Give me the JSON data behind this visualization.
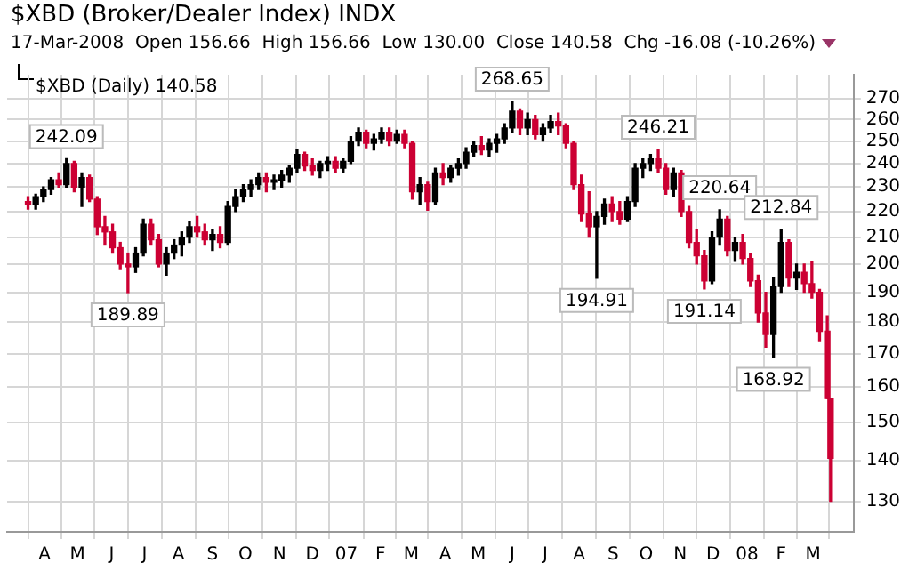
{
  "chart_data": {
    "type": "candlestick",
    "title": "$XBD (Broker/Dealer Index) INDX",
    "subtitle": "17-Mar-2008  Open 156.66  High 156.66  Low 130.00  Close 140.58  Chg -16.08 (-10.26%)",
    "x": [
      "2006-03-17",
      "2006-03-24",
      "2006-03-31",
      "2006-04-07",
      "2006-04-14",
      "2006-04-21",
      "2006-04-28",
      "2006-05-05",
      "2006-05-12",
      "2006-05-19",
      "2006-05-26",
      "2006-06-02",
      "2006-06-09",
      "2006-06-16",
      "2006-06-23",
      "2006-06-30",
      "2006-07-07",
      "2006-07-14",
      "2006-07-21",
      "2006-07-28",
      "2006-08-04",
      "2006-08-11",
      "2006-08-18",
      "2006-08-25",
      "2006-09-01",
      "2006-09-08",
      "2006-09-15",
      "2006-09-22",
      "2006-09-29",
      "2006-10-06",
      "2006-10-13",
      "2006-10-20",
      "2006-10-27",
      "2006-11-03",
      "2006-11-10",
      "2006-11-17",
      "2006-11-24",
      "2006-12-01",
      "2006-12-08",
      "2006-12-15",
      "2006-12-22",
      "2006-12-29",
      "2007-01-05",
      "2007-01-12",
      "2007-01-19",
      "2007-01-26",
      "2007-02-02",
      "2007-02-09",
      "2007-02-16",
      "2007-02-23",
      "2007-03-02",
      "2007-03-09",
      "2007-03-16",
      "2007-03-23",
      "2007-03-30",
      "2007-04-06",
      "2007-04-13",
      "2007-04-20",
      "2007-04-27",
      "2007-05-04",
      "2007-05-11",
      "2007-05-18",
      "2007-05-25",
      "2007-06-01",
      "2007-06-08",
      "2007-06-15",
      "2007-06-22",
      "2007-06-29",
      "2007-07-06",
      "2007-07-13",
      "2007-07-20",
      "2007-07-27",
      "2007-08-03",
      "2007-08-10",
      "2007-08-17",
      "2007-08-24",
      "2007-08-31",
      "2007-09-07",
      "2007-09-14",
      "2007-09-21",
      "2007-09-28",
      "2007-10-05",
      "2007-10-12",
      "2007-10-19",
      "2007-10-26",
      "2007-11-02",
      "2007-11-09",
      "2007-11-16",
      "2007-11-23",
      "2007-11-30",
      "2007-12-07",
      "2007-12-14",
      "2007-12-21",
      "2007-12-28",
      "2008-01-04",
      "2008-01-11",
      "2008-01-18",
      "2008-01-25",
      "2008-02-01",
      "2008-02-08",
      "2008-02-15",
      "2008-02-22",
      "2008-02-29",
      "2008-03-07",
      "2008-03-14",
      "2008-03-17"
    ],
    "ohlc": [
      [
        224,
        226,
        221,
        223
      ],
      [
        223,
        227,
        221,
        226
      ],
      [
        226,
        230,
        224,
        229
      ],
      [
        229,
        234,
        227,
        233
      ],
      [
        233,
        236,
        230,
        231
      ],
      [
        231,
        242.09,
        230,
        240
      ],
      [
        240,
        241,
        228,
        230
      ],
      [
        230,
        236,
        222,
        234
      ],
      [
        234,
        235,
        224,
        225
      ],
      [
        225,
        226,
        211,
        214
      ],
      [
        214,
        218,
        207,
        212
      ],
      [
        212,
        215,
        204,
        206
      ],
      [
        206,
        208,
        198,
        200
      ],
      [
        200,
        204,
        189.89,
        199
      ],
      [
        199,
        206,
        197,
        204
      ],
      [
        204,
        217,
        203,
        215
      ],
      [
        215,
        217,
        207,
        209
      ],
      [
        209,
        211,
        199,
        200
      ],
      [
        200,
        206,
        196,
        204
      ],
      [
        204,
        209,
        202,
        207
      ],
      [
        207,
        212,
        203,
        210
      ],
      [
        210,
        216,
        208,
        214
      ],
      [
        214,
        218,
        210,
        212
      ],
      [
        212,
        215,
        207,
        209
      ],
      [
        209,
        213,
        205,
        211
      ],
      [
        211,
        214,
        206,
        208
      ],
      [
        208,
        224,
        207,
        222
      ],
      [
        222,
        229,
        220,
        226
      ],
      [
        226,
        231,
        224,
        229
      ],
      [
        229,
        233,
        226,
        231
      ],
      [
        231,
        236,
        229,
        234
      ],
      [
        234,
        236,
        228,
        232
      ],
      [
        232,
        235,
        229,
        233
      ],
      [
        233,
        237,
        230,
        235
      ],
      [
        235,
        239,
        232,
        238
      ],
      [
        238,
        246,
        236,
        244
      ],
      [
        244,
        245,
        237,
        239
      ],
      [
        239,
        242,
        235,
        237
      ],
      [
        237,
        241,
        234,
        240
      ],
      [
        240,
        243,
        237,
        241
      ],
      [
        241,
        243,
        236,
        238
      ],
      [
        238,
        242,
        236,
        241
      ],
      [
        241,
        252,
        240,
        250
      ],
      [
        250,
        256,
        248,
        254
      ],
      [
        254,
        255,
        247,
        249
      ],
      [
        249,
        253,
        246,
        251
      ],
      [
        251,
        256,
        249,
        254
      ],
      [
        254,
        256,
        248,
        250
      ],
      [
        250,
        255,
        249,
        253
      ],
      [
        253,
        255,
        247,
        249
      ],
      [
        249,
        250,
        225,
        228
      ],
      [
        228,
        234,
        223,
        231
      ],
      [
        231,
        232,
        220.5,
        224
      ],
      [
        224,
        238,
        223,
        236
      ],
      [
        236,
        240,
        231,
        234
      ],
      [
        234,
        239,
        232,
        238
      ],
      [
        238,
        242,
        235,
        240
      ],
      [
        240,
        247,
        238,
        245
      ],
      [
        245,
        250,
        243,
        248
      ],
      [
        248,
        252,
        244,
        246
      ],
      [
        246,
        251,
        243,
        249
      ],
      [
        249,
        253,
        245,
        251
      ],
      [
        251,
        258,
        249,
        256
      ],
      [
        256,
        268.65,
        254,
        264
      ],
      [
        264,
        265,
        253,
        256
      ],
      [
        256,
        263,
        253,
        260
      ],
      [
        260,
        262,
        251,
        253
      ],
      [
        253,
        258,
        250,
        256
      ],
      [
        256,
        262,
        254,
        259
      ],
      [
        259,
        263,
        253,
        257
      ],
      [
        257,
        258,
        247,
        249
      ],
      [
        249,
        250,
        229,
        231
      ],
      [
        231,
        235,
        216,
        219
      ],
      [
        219,
        228,
        210,
        214
      ],
      [
        214,
        220,
        194.91,
        218
      ],
      [
        218,
        225,
        215,
        223
      ],
      [
        223,
        226,
        216,
        220
      ],
      [
        220,
        224,
        215,
        217
      ],
      [
        217,
        226,
        216,
        224
      ],
      [
        224,
        240,
        222,
        238
      ],
      [
        238,
        242,
        234,
        240
      ],
      [
        240,
        244,
        237,
        242
      ],
      [
        242,
        246.21,
        236,
        238
      ],
      [
        238,
        240,
        227,
        229
      ],
      [
        229,
        238,
        226,
        236
      ],
      [
        236,
        237,
        218,
        220
      ],
      [
        220,
        222,
        206,
        208
      ],
      [
        208,
        213,
        200,
        203
      ],
      [
        203,
        205,
        191.14,
        194
      ],
      [
        194,
        212,
        193,
        210
      ],
      [
        210,
        220.64,
        207,
        217
      ],
      [
        217,
        218,
        203,
        205
      ],
      [
        205,
        210,
        201,
        208
      ],
      [
        208,
        211,
        200,
        202
      ],
      [
        202,
        204,
        192,
        194
      ],
      [
        194,
        196,
        180,
        183
      ],
      [
        183,
        190,
        172,
        176
      ],
      [
        176,
        195,
        168.92,
        192
      ],
      [
        192,
        212.84,
        190,
        208
      ],
      [
        208,
        209,
        192,
        195
      ],
      [
        195,
        200,
        191,
        197
      ],
      [
        197,
        200,
        190,
        193
      ],
      [
        193,
        201,
        188,
        190
      ],
      [
        190,
        191,
        174,
        177
      ],
      [
        177,
        182,
        156.66,
        156.66
      ],
      [
        156.66,
        156.66,
        130,
        140.58
      ]
    ],
    "xlim": [
      "2006-03-14",
      "2008-03-22"
    ],
    "xticks": [
      {
        "value": "2006-04-01",
        "label": "A"
      },
      {
        "value": "2006-05-01",
        "label": "M"
      },
      {
        "value": "2006-06-01",
        "label": "J"
      },
      {
        "value": "2006-07-01",
        "label": "J"
      },
      {
        "value": "2006-08-01",
        "label": "A"
      },
      {
        "value": "2006-09-01",
        "label": "S"
      },
      {
        "value": "2006-10-01",
        "label": "O"
      },
      {
        "value": "2006-11-01",
        "label": "N"
      },
      {
        "value": "2006-12-01",
        "label": "D"
      },
      {
        "value": "2007-01-01",
        "label": "07"
      },
      {
        "value": "2007-02-01",
        "label": "F"
      },
      {
        "value": "2007-03-01",
        "label": "M"
      },
      {
        "value": "2007-04-01",
        "label": "A"
      },
      {
        "value": "2007-05-01",
        "label": "M"
      },
      {
        "value": "2007-06-01",
        "label": "J"
      },
      {
        "value": "2007-07-01",
        "label": "J"
      },
      {
        "value": "2007-08-01",
        "label": "A"
      },
      {
        "value": "2007-09-01",
        "label": "S"
      },
      {
        "value": "2007-10-01",
        "label": "O"
      },
      {
        "value": "2007-11-01",
        "label": "N"
      },
      {
        "value": "2007-12-01",
        "label": "D"
      },
      {
        "value": "2008-01-01",
        "label": "08"
      },
      {
        "value": "2008-02-01",
        "label": "F"
      },
      {
        "value": "2008-03-01",
        "label": "M"
      }
    ],
    "ylim": [
      123,
      282
    ],
    "yticks": [
      130,
      140,
      150,
      160,
      170,
      180,
      190,
      200,
      210,
      220,
      230,
      240,
      250,
      260,
      270
    ],
    "log": true,
    "grid": true,
    "annotations": [
      "$XBD (Daily) 140.58",
      {
        "text": "242.09",
        "x": "2006-04-21",
        "y": 242.09
      },
      {
        "text": "189.89",
        "x": "2006-06-16",
        "y": 189.89
      },
      {
        "text": "268.65",
        "x": "2007-06-01",
        "y": 268.65
      },
      {
        "text": "194.91",
        "x": "2007-08-17",
        "y": 194.91
      },
      {
        "text": "246.21",
        "x": "2007-10-12",
        "y": 246.21
      },
      {
        "text": "191.14",
        "x": "2007-11-23",
        "y": 191.14
      },
      {
        "text": "220.64",
        "x": "2007-12-07",
        "y": 220.64
      },
      {
        "text": "168.92",
        "x": "2008-01-25",
        "y": 168.92
      },
      {
        "text": "212.84",
        "x": "2008-02-01",
        "y": 212.84
      }
    ]
  }
}
